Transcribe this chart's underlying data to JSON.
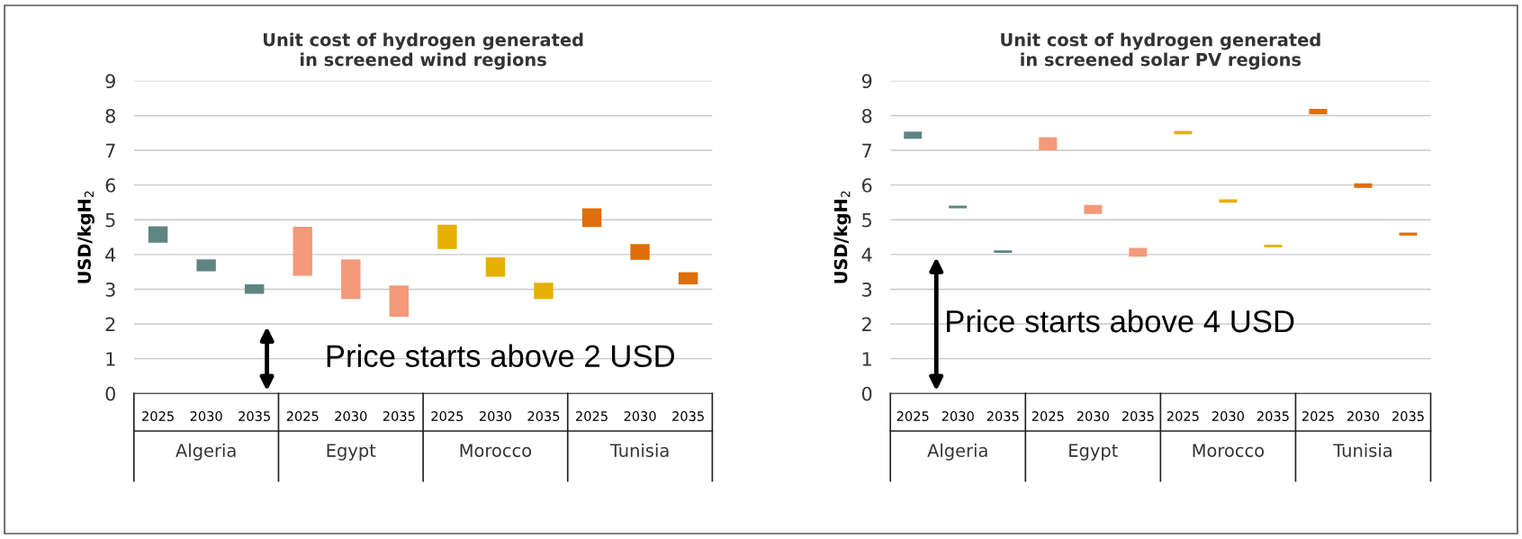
{
  "chart_data": [
    {
      "type": "bar",
      "title": "Unit cost of hydrogen generated\nin screened wind regions",
      "ylabel": "USD/kgH$_{2}$",
      "categories": [
        "2025",
        "2030",
        "2035",
        "2025",
        "2030",
        "2035",
        "2025",
        "2030",
        "2035",
        "2025",
        "2030",
        "2035"
      ],
      "base": [
        4.34,
        3.52,
        2.87,
        3.39,
        2.72,
        2.21,
        4.16,
        3.36,
        2.72,
        4.79,
        3.85,
        3.14
      ],
      "values": [
        0.47,
        0.34,
        0.27,
        1.41,
        1.14,
        0.9,
        0.7,
        0.56,
        0.47,
        0.54,
        0.45,
        0.35
      ],
      "colors": [
        "#5e8583",
        "#5e8583",
        "#5e8583",
        "#f4997a",
        "#f4997a",
        "#f4997a",
        "#e6b000",
        "#e6b000",
        "#e6b000",
        "#de6e0a",
        "#de6e0a",
        "#de6e0a"
      ],
      "ylim": [
        0,
        9
      ],
      "yticks": [
        0,
        1,
        2,
        3,
        4,
        5,
        6,
        7,
        8,
        9
      ],
      "grid": "y",
      "annotations": [
        "Algeria",
        "Egypt",
        "Morocco",
        "Tunisia",
        "Price starts above 2 USD"
      ]
    },
    {
      "type": "bar",
      "title": "Unit cost of hydrogen generated\nin screened solar PV regions",
      "ylabel": "USD/kgH$_{2}$",
      "categories": [
        "2025",
        "2030",
        "2035",
        "2025",
        "2030",
        "2035",
        "2025",
        "2030",
        "2035",
        "2025",
        "2030",
        "2035"
      ],
      "base": [
        7.33,
        5.33,
        4.05,
        7.0,
        5.17,
        3.94,
        7.46,
        5.49,
        4.21,
        8.04,
        5.92,
        4.55
      ],
      "values": [
        0.21,
        0.08,
        0.07,
        0.38,
        0.26,
        0.25,
        0.1,
        0.1,
        0.07,
        0.15,
        0.13,
        0.08
      ],
      "colors": [
        "#5e8583",
        "#5e8583",
        "#5e8583",
        "#f4997a",
        "#f4997a",
        "#f4997a",
        "#e6b000",
        "#e6b000",
        "#e6b000",
        "#de6e0a",
        "#de6e0a",
        "#de6e0a"
      ],
      "ylim": [
        0,
        9
      ],
      "yticks": [
        0,
        1,
        2,
        3,
        4,
        5,
        6,
        7,
        8,
        9
      ],
      "grid": "y",
      "annotations": [
        "Algeria",
        "Egypt",
        "Morocco",
        "Tunisia",
        "Price starts above 4 USD"
      ]
    }
  ]
}
